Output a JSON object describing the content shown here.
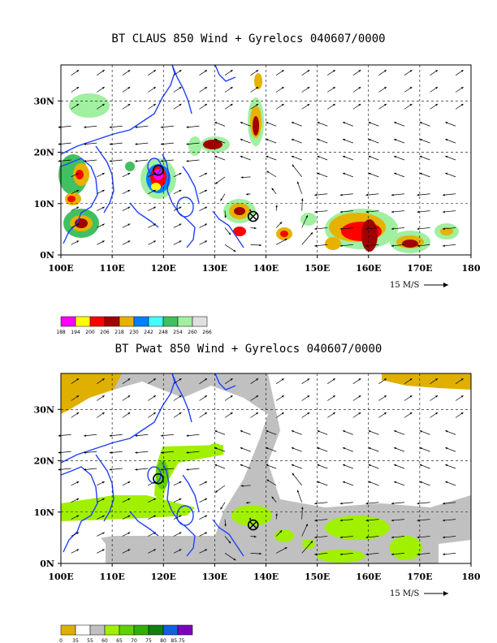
{
  "panels": [
    {
      "title": "BT CLAUS 850 Wind + Gyrelocs 040607/0000",
      "xticks": [
        "100E",
        "110E",
        "120E",
        "130E",
        "140E",
        "150E",
        "160E",
        "170E",
        "180"
      ],
      "yticks": [
        "0N",
        "10N",
        "20N",
        "30N"
      ],
      "scale_label": "15 M/S",
      "colorbar": {
        "colors": [
          "#ff00ff",
          "#ffff00",
          "#ff0000",
          "#a00000",
          "#e6b200",
          "#0080ff",
          "#40ffff",
          "#40c060",
          "#a0f0a0",
          "#e0e0e0"
        ],
        "labels": [
          "188",
          "194",
          "200",
          "206",
          "218",
          "230",
          "242",
          "248",
          "254",
          "260",
          "266"
        ]
      },
      "markers": [
        {
          "lon": 137.5,
          "lat": 7.5,
          "symbol": "circle-x",
          "color": "#000000"
        },
        {
          "lon": 119.0,
          "lat": 16.5,
          "symbol": "circle",
          "color": "#000000"
        }
      ]
    },
    {
      "title": "BT Pwat 850 Wind + Gyrelocs 040607/0000",
      "xticks": [
        "100E",
        "110E",
        "120E",
        "130E",
        "140E",
        "150E",
        "160E",
        "170E",
        "180"
      ],
      "yticks": [
        "0N",
        "10N",
        "20N",
        "30N"
      ],
      "scale_label": "15 M/S",
      "colorbar": {
        "colors": [
          "#e0b000",
          "#ffffff",
          "#c0c0c0",
          "#a0f000",
          "#60d000",
          "#30b000",
          "#108010",
          "#1060e0",
          "#8000c0"
        ],
        "labels": [
          "0",
          "35",
          "55",
          "60",
          "65",
          "70",
          "75",
          "80",
          "85.75"
        ]
      },
      "markers": [
        {
          "lon": 137.5,
          "lat": 7.5,
          "symbol": "circle-x",
          "color": "#000000"
        },
        {
          "lon": 119.0,
          "lat": 16.5,
          "symbol": "circle",
          "color": "#000000"
        }
      ]
    }
  ],
  "colors": {
    "coastline": "#2040ff",
    "grid": "#000000",
    "wind": "#000000"
  }
}
